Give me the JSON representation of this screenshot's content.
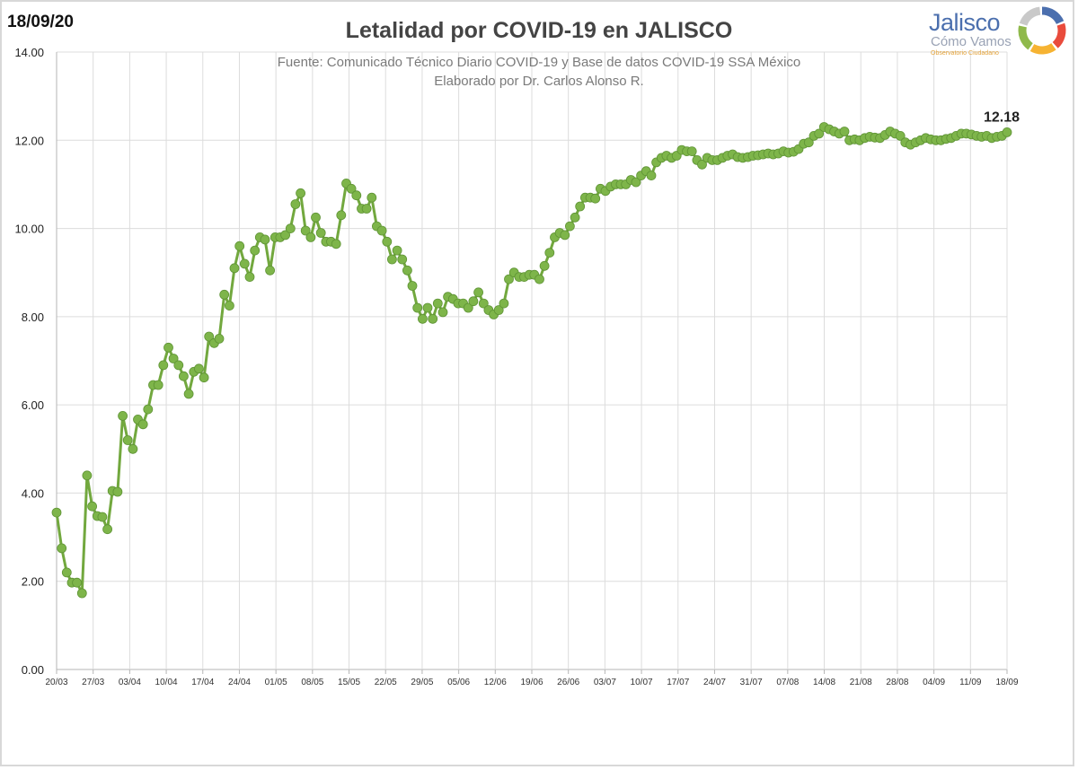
{
  "header": {
    "date": "18/09/20",
    "title": "Letalidad por COVID-19 en JALISCO",
    "source_line1": "Fuente: Comunicado Técnico Diario COVID-19 y Base de datos COVID-19 SSA México",
    "source_line2": "Elaborado por Dr. Carlos Alonso R."
  },
  "logo": {
    "line1": "Jalisco",
    "line2": "Cómo Vamos",
    "line3": "Observatorio Ciudadano",
    "ring_colors": [
      "#4b6fae",
      "#e94b3c",
      "#f6b332",
      "#8fb94b",
      "#c9c9c9"
    ]
  },
  "chart_data": {
    "type": "line",
    "title": "Letalidad por COVID-19 en JALISCO",
    "xlabel": "",
    "ylabel": "",
    "ylim": [
      0,
      14
    ],
    "yticks": [
      "0.00",
      "2.00",
      "4.00",
      "6.00",
      "8.00",
      "10.00",
      "12.00",
      "14.00"
    ],
    "grid": true,
    "legend": "none",
    "line_color": "#72a83e",
    "marker_color": "#7eb54a",
    "x_tick_labels": [
      "20/03",
      "27/03",
      "03/04",
      "10/04",
      "17/04",
      "24/04",
      "01/05",
      "08/05",
      "15/05",
      "22/05",
      "29/05",
      "05/06",
      "12/06",
      "19/06",
      "26/06",
      "03/07",
      "10/07",
      "17/07",
      "24/07",
      "31/07",
      "07/08",
      "14/08",
      "21/08",
      "28/08",
      "04/09",
      "11/09",
      "18/09"
    ],
    "last_value_label": "12.18",
    "values": [
      3.56,
      2.75,
      2.2,
      1.97,
      1.97,
      1.73,
      4.4,
      3.7,
      3.48,
      3.46,
      3.18,
      4.05,
      4.03,
      5.75,
      5.2,
      5.0,
      5.67,
      5.56,
      5.9,
      6.45,
      6.45,
      6.9,
      7.3,
      7.05,
      6.9,
      6.65,
      6.25,
      6.75,
      6.82,
      6.62,
      7.55,
      7.4,
      7.5,
      8.5,
      8.25,
      9.1,
      9.6,
      9.2,
      8.9,
      9.5,
      9.8,
      9.75,
      9.05,
      9.8,
      9.8,
      9.85,
      10.0,
      10.55,
      10.8,
      9.95,
      9.8,
      10.25,
      9.9,
      9.7,
      9.7,
      9.65,
      10.3,
      11.02,
      10.9,
      10.75,
      10.45,
      10.45,
      10.7,
      10.05,
      9.95,
      9.7,
      9.3,
      9.5,
      9.3,
      9.05,
      8.7,
      8.2,
      7.95,
      8.2,
      7.95,
      8.3,
      8.1,
      8.45,
      8.4,
      8.3,
      8.3,
      8.2,
      8.35,
      8.55,
      8.3,
      8.15,
      8.05,
      8.15,
      8.3,
      8.85,
      9.0,
      8.9,
      8.9,
      8.95,
      8.95,
      8.85,
      9.15,
      9.45,
      9.8,
      9.9,
      9.85,
      10.05,
      10.25,
      10.5,
      10.7,
      10.7,
      10.68,
      10.9,
      10.85,
      10.95,
      11.0,
      11.0,
      11.0,
      11.1,
      11.05,
      11.2,
      11.3,
      11.2,
      11.5,
      11.6,
      11.65,
      11.6,
      11.65,
      11.78,
      11.75,
      11.75,
      11.55,
      11.45,
      11.6,
      11.55,
      11.55,
      11.6,
      11.65,
      11.68,
      11.62,
      11.6,
      11.62,
      11.65,
      11.66,
      11.68,
      11.7,
      11.68,
      11.7,
      11.75,
      11.72,
      11.74,
      11.8,
      11.92,
      11.95,
      12.1,
      12.15,
      12.3,
      12.25,
      12.2,
      12.15,
      12.2,
      12.0,
      12.02,
      12.0,
      12.05,
      12.08,
      12.06,
      12.05,
      12.12,
      12.2,
      12.15,
      12.1,
      11.95,
      11.9,
      11.95,
      12.0,
      12.05,
      12.02,
      12.0,
      12.0,
      12.03,
      12.05,
      12.1,
      12.15,
      12.15,
      12.13,
      12.1,
      12.08,
      12.1,
      12.05,
      12.08,
      12.1,
      12.18
    ]
  }
}
